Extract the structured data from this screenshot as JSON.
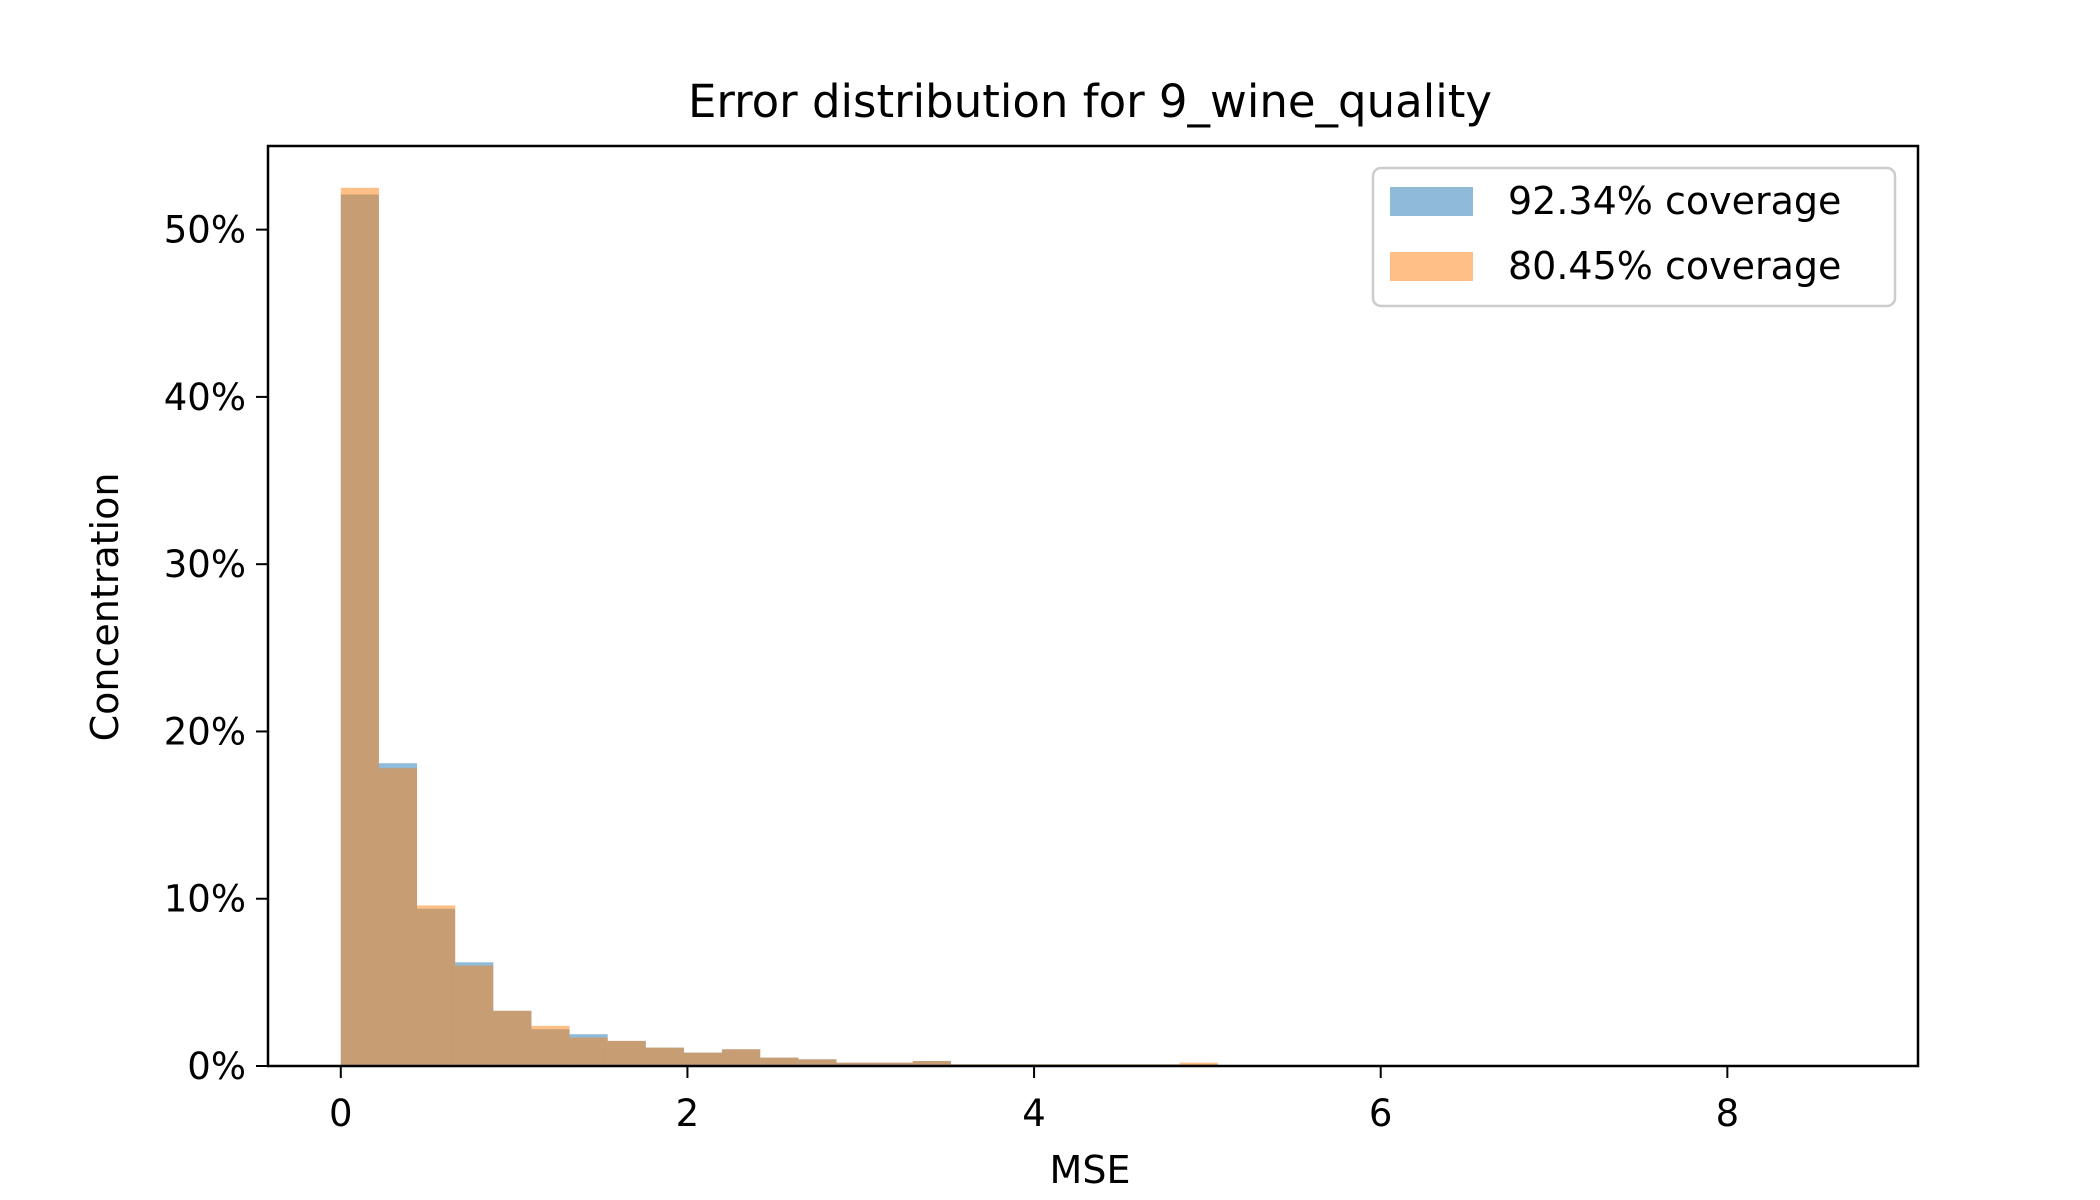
{
  "chart_data": {
    "type": "bar",
    "title": "Error distribution for 9_wine_quality",
    "xlabel": "MSE",
    "ylabel": "Concentration",
    "xlim": [
      -0.42,
      9.1
    ],
    "ylim": [
      0,
      0.55
    ],
    "x_ticks": [
      0,
      2,
      4,
      6,
      8
    ],
    "y_ticks": [
      0,
      0.1,
      0.2,
      0.3,
      0.4,
      0.5
    ],
    "y_tick_labels": [
      "0%",
      "10%",
      "20%",
      "30%",
      "40%",
      "50%"
    ],
    "bin_edges": [
      0.0,
      0.22,
      0.44,
      0.66,
      0.88,
      1.1,
      1.32,
      1.54,
      1.76,
      1.98,
      2.2,
      2.42,
      2.64,
      2.86,
      3.08,
      3.3,
      3.52,
      3.74,
      3.96,
      4.18,
      4.4,
      4.62,
      4.84,
      5.06
    ],
    "legend_position": "top-right",
    "grid": false,
    "series": [
      {
        "name": "92.34% coverage",
        "color": "#1f77b4",
        "values": [
          0.521,
          0.181,
          0.094,
          0.062,
          0.033,
          0.022,
          0.019,
          0.015,
          0.011,
          0.008,
          0.01,
          0.005,
          0.004,
          0.002,
          0.002,
          0.003,
          0.001,
          0.001,
          0.001,
          0.001,
          0.001,
          0.001,
          0.001
        ]
      },
      {
        "name": "80.45% coverage",
        "color": "#ff7f0e",
        "values": [
          0.525,
          0.178,
          0.096,
          0.06,
          0.033,
          0.024,
          0.017,
          0.015,
          0.011,
          0.008,
          0.01,
          0.005,
          0.004,
          0.002,
          0.002,
          0.003,
          0.001,
          0.001,
          0.001,
          0.001,
          0.001,
          0.001,
          0.002
        ]
      }
    ]
  }
}
